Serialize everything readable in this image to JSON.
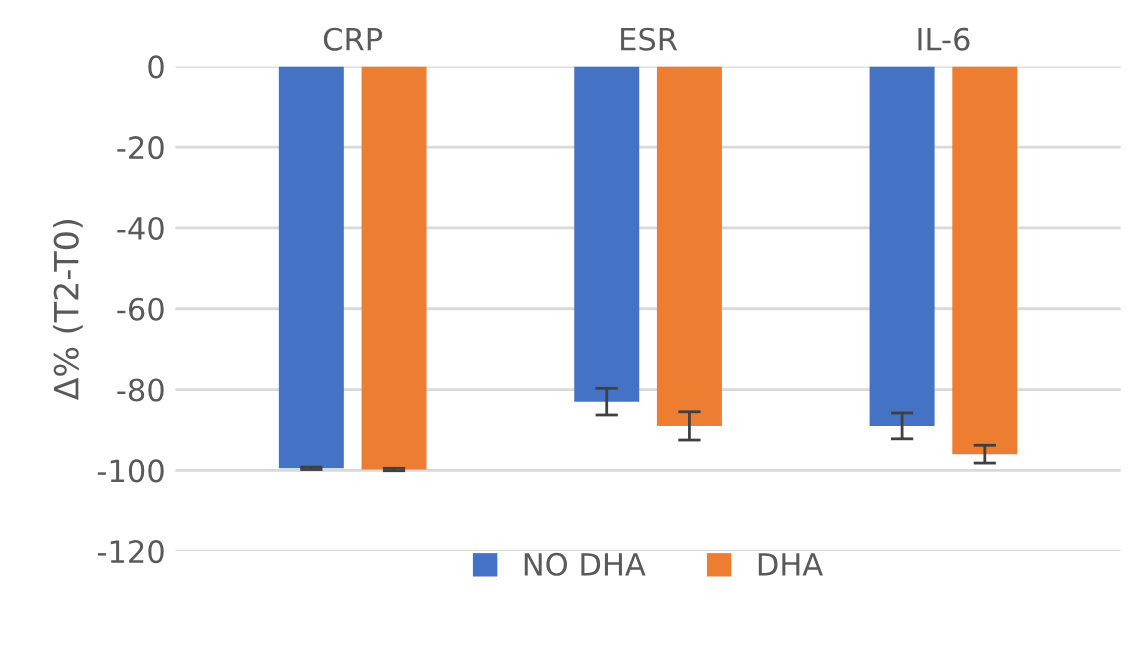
{
  "chart_data": {
    "type": "bar",
    "ylabel": "Δ% (T2-T0)",
    "categories": [
      "CRP",
      "ESR",
      "IL-6"
    ],
    "series": [
      {
        "name": "NO DHA",
        "color": "#4472c4",
        "values": [
          -99.5,
          -83,
          -89
        ],
        "errors": [
          0.3,
          3.3,
          3.2
        ]
      },
      {
        "name": "DHA",
        "color": "#ed7d31",
        "values": [
          -99.8,
          -89,
          -96
        ],
        "errors": [
          0.3,
          3.5,
          2.2
        ]
      }
    ],
    "ylim": [
      -120,
      0
    ],
    "yticks": [
      -120,
      -100,
      -80,
      -60,
      -40,
      -20,
      0
    ],
    "grid": "y",
    "legend": "bottom"
  }
}
